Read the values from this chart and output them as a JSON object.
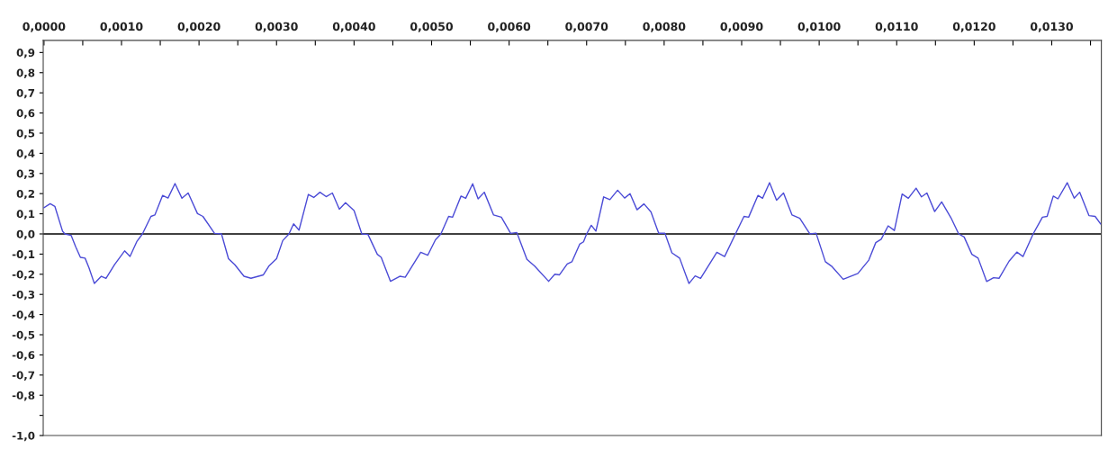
{
  "chart_data": {
    "type": "line",
    "x": [
      0.0,
      8e-05,
      0.00014,
      0.00024,
      0.00027,
      0.00035,
      0.00041,
      0.00047,
      0.00053,
      0.00058,
      0.00065,
      0.00074,
      0.0008,
      0.00091,
      0.00104,
      0.00111,
      0.0012,
      0.00127,
      0.00138,
      0.00143,
      0.00153,
      0.0016,
      0.00169,
      0.00178,
      0.00186,
      0.00198,
      0.00205,
      0.0022,
      0.00229,
      0.00238,
      0.00246,
      0.00258,
      0.00267,
      0.00283,
      0.0029,
      0.003,
      0.00308,
      0.00316,
      0.00322,
      0.00329,
      0.00341,
      0.00348,
      0.00356,
      0.00364,
      0.00372,
      0.00381,
      0.00389,
      0.004,
      0.0041,
      0.00418,
      0.0043,
      0.00435,
      0.00447,
      0.00459,
      0.00466,
      0.00486,
      0.00495,
      0.00505,
      0.00512,
      0.00522,
      0.00527,
      0.00538,
      0.00544,
      0.00553,
      0.0056,
      0.00568,
      0.0058,
      0.0059,
      0.00602,
      0.0061,
      0.00623,
      0.00633,
      0.00651,
      0.00659,
      0.00665,
      0.00675,
      0.00681,
      0.00691,
      0.00696,
      0.007,
      0.00706,
      0.00712,
      0.00722,
      0.0073,
      0.0074,
      0.00749,
      0.00756,
      0.00765,
      0.00774,
      0.00783,
      0.00793,
      0.00801,
      0.0081,
      0.0082,
      0.00832,
      0.0084,
      0.00847,
      0.00868,
      0.00878,
      0.00892,
      0.00903,
      0.00909,
      0.00921,
      0.00927,
      0.00936,
      0.00945,
      0.00954,
      0.00965,
      0.00975,
      0.00988,
      0.00996,
      0.01008,
      0.01016,
      0.01031,
      0.0105,
      0.01064,
      0.01073,
      0.0108,
      0.01089,
      0.01097,
      0.01107,
      0.01115,
      0.01125,
      0.01132,
      0.01139,
      0.01149,
      0.01158,
      0.0117,
      0.0118,
      0.01187,
      0.01197,
      0.01205,
      0.01216,
      0.01225,
      0.01232,
      0.01245,
      0.01255,
      0.01263,
      0.01276,
      0.01288,
      0.01294,
      0.01302,
      0.01308,
      0.0132,
      0.01329,
      0.01336,
      0.01348,
      0.01356,
      0.01363
    ],
    "series": [
      {
        "color": "#4b4bd6",
        "values": [
          0.13,
          0.15,
          0.137,
          0.013,
          0.0,
          -0.007,
          -0.065,
          -0.116,
          -0.12,
          -0.167,
          -0.246,
          -0.21,
          -0.22,
          -0.152,
          -0.084,
          -0.112,
          -0.036,
          0.0,
          0.087,
          0.094,
          0.191,
          0.178,
          0.25,
          0.177,
          0.203,
          0.101,
          0.087,
          0.003,
          0.0,
          -0.123,
          -0.152,
          -0.21,
          -0.22,
          -0.203,
          -0.16,
          -0.123,
          -0.033,
          0.0,
          0.05,
          0.019,
          0.196,
          0.181,
          0.207,
          0.185,
          0.203,
          0.123,
          0.155,
          0.116,
          0.0,
          -0.003,
          -0.101,
          -0.116,
          -0.235,
          -0.21,
          -0.215,
          -0.091,
          -0.106,
          -0.029,
          0.0,
          0.087,
          0.083,
          0.188,
          0.177,
          0.249,
          0.174,
          0.207,
          0.094,
          0.083,
          0.003,
          0.007,
          -0.126,
          -0.16,
          -0.235,
          -0.2,
          -0.203,
          -0.149,
          -0.138,
          -0.051,
          -0.039,
          0.0,
          0.043,
          0.014,
          0.184,
          0.17,
          0.217,
          0.178,
          0.2,
          0.12,
          0.149,
          0.109,
          0.003,
          0.003,
          -0.094,
          -0.12,
          -0.246,
          -0.208,
          -0.22,
          -0.091,
          -0.112,
          0.0,
          0.087,
          0.083,
          0.191,
          0.177,
          0.254,
          0.167,
          0.203,
          0.094,
          0.077,
          0.0,
          0.004,
          -0.138,
          -0.16,
          -0.225,
          -0.196,
          -0.13,
          -0.043,
          -0.026,
          0.04,
          0.017,
          0.198,
          0.177,
          0.227,
          0.184,
          0.203,
          0.111,
          0.159,
          0.08,
          0.0,
          -0.015,
          -0.101,
          -0.12,
          -0.236,
          -0.217,
          -0.22,
          -0.135,
          -0.09,
          -0.112,
          0.0,
          0.083,
          0.087,
          0.188,
          0.174,
          0.254,
          0.177,
          0.207,
          0.091,
          0.087,
          0.05
        ]
      }
    ],
    "xlim": [
      -1e-05,
      0.01364
    ],
    "xticks": [
      {
        "value": 0.0,
        "label": "0,0000"
      },
      {
        "value": 0.0005,
        "label": null
      },
      {
        "value": 0.001,
        "label": "0,0010"
      },
      {
        "value": 0.0015,
        "label": null
      },
      {
        "value": 0.002,
        "label": "0,0020"
      },
      {
        "value": 0.0025,
        "label": null
      },
      {
        "value": 0.003,
        "label": "0,0030"
      },
      {
        "value": 0.0035,
        "label": null
      },
      {
        "value": 0.004,
        "label": "0,0040"
      },
      {
        "value": 0.0045,
        "label": null
      },
      {
        "value": 0.005,
        "label": "0,0050"
      },
      {
        "value": 0.0055,
        "label": null
      },
      {
        "value": 0.006,
        "label": "0,0060"
      },
      {
        "value": 0.0065,
        "label": null
      },
      {
        "value": 0.007,
        "label": "0,0070"
      },
      {
        "value": 0.0075,
        "label": null
      },
      {
        "value": 0.008,
        "label": "0,0080"
      },
      {
        "value": 0.0085,
        "label": null
      },
      {
        "value": 0.009,
        "label": "0,0090"
      },
      {
        "value": 0.0095,
        "label": null
      },
      {
        "value": 0.01,
        "label": "0,0100"
      },
      {
        "value": 0.0105,
        "label": null
      },
      {
        "value": 0.011,
        "label": "0,0110"
      },
      {
        "value": 0.0115,
        "label": null
      },
      {
        "value": 0.012,
        "label": "0,0120"
      },
      {
        "value": 0.0125,
        "label": null
      },
      {
        "value": 0.013,
        "label": "0,0130"
      },
      {
        "value": 0.0135,
        "label": null
      }
    ],
    "ylim": [
      -1.0,
      0.96
    ],
    "yticks": [
      {
        "value": 0.9,
        "label": "0,9"
      },
      {
        "value": 0.8,
        "label": "0,8"
      },
      {
        "value": 0.7,
        "label": "0,7"
      },
      {
        "value": 0.6,
        "label": "0,6"
      },
      {
        "value": 0.5,
        "label": "0,5"
      },
      {
        "value": 0.4,
        "label": "0,4"
      },
      {
        "value": 0.3,
        "label": "0,3"
      },
      {
        "value": 0.2,
        "label": "0,2"
      },
      {
        "value": 0.1,
        "label": "0,1"
      },
      {
        "value": 0.0,
        "label": "0,0"
      },
      {
        "value": -0.1,
        "label": "-0,1"
      },
      {
        "value": -0.2,
        "label": "-0,2"
      },
      {
        "value": -0.3,
        "label": "-0,3"
      },
      {
        "value": -0.4,
        "label": "-0,4"
      },
      {
        "value": -0.5,
        "label": "-0,5"
      },
      {
        "value": -0.6,
        "label": "-0,6"
      },
      {
        "value": -0.7,
        "label": "-0,7"
      },
      {
        "value": -0.8,
        "label": "-0,8"
      },
      {
        "value": -0.9,
        "label": null
      },
      {
        "value": -1.0,
        "label": "-1,0"
      }
    ],
    "ref_lines": [
      {
        "axis": "y",
        "value": 0.0,
        "color": "#000000"
      }
    ],
    "grid": false,
    "marker": "none",
    "line_style": "solid"
  }
}
